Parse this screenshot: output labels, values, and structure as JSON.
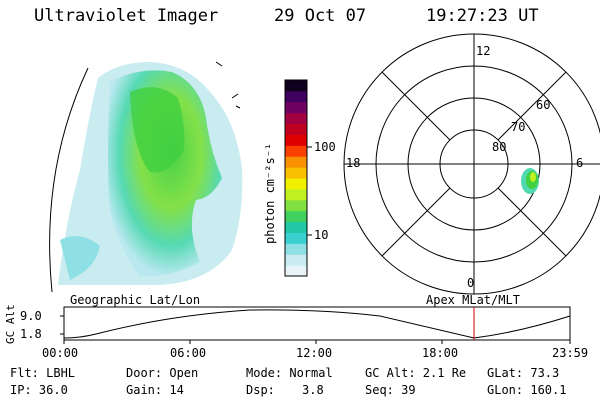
{
  "header": {
    "instrument": "Ultraviolet Imager",
    "date": "29 Oct 07",
    "time": "19:27:23 UT"
  },
  "colorbar": {
    "unit_label": "photon cm⁻²s⁻¹",
    "ticks": [
      "100",
      "10"
    ],
    "colors": [
      "#e8f4f8",
      "#c8ecf0",
      "#8ee0e4",
      "#3ad0d0",
      "#20c8a8",
      "#40d060",
      "#80e040",
      "#c0f020",
      "#f0f000",
      "#f8c000",
      "#f89000",
      "#f84000",
      "#e00000",
      "#c00020",
      "#a00040",
      "#700060",
      "#400060",
      "#100020"
    ]
  },
  "polar": {
    "labels": {
      "top": "12",
      "left": "18",
      "right": "6",
      "bottom": "0"
    },
    "lat_labels": [
      "80",
      "70",
      "60"
    ]
  },
  "timeline": {
    "ylabel": "GC Alt",
    "y_ticks": [
      "9.0",
      "1.8"
    ],
    "left_title": "Geographic Lat/Lon",
    "right_title": "Apex MLat/MLT",
    "x_ticks": [
      "00:00",
      "06:00",
      "12:00",
      "18:00",
      "23:59"
    ]
  },
  "info": {
    "flt": "Flt: LBHL",
    "door": "Door: Open",
    "mode": "Mode: Normal",
    "gcalt": "GC Alt: 2.1 Re",
    "glat": "GLat:  73.3",
    "ip": "IP: 36.0",
    "gain": "Gain: 14",
    "dsp_label": "Dsp:",
    "dsp_value": "3.8",
    "seq": "Seq: 39",
    "glon": "GLon: 160.1"
  }
}
